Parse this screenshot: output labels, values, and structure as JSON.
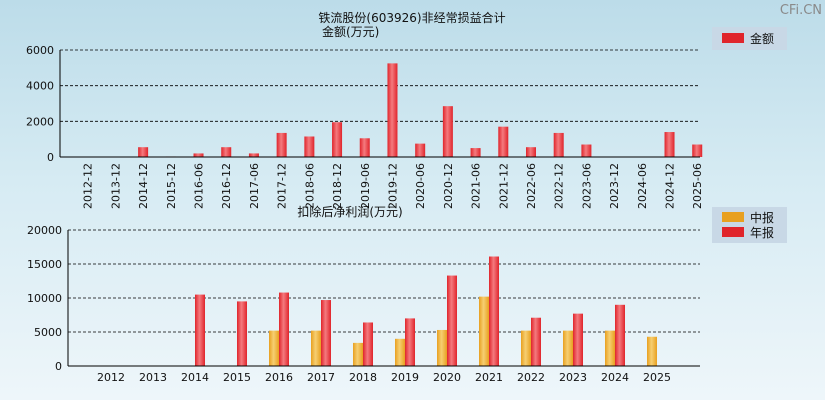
{
  "watermark": "CFi.CN",
  "colors": {
    "annual": "#e0242b",
    "interim": "#e8a020",
    "grid": "#000000"
  },
  "chart_data": [
    {
      "type": "bar",
      "title": "铁流股份(603926)非经常损益合计",
      "subtitle": "金额(万元)",
      "legend": [
        "金额"
      ],
      "legend_position": "top-right",
      "grid": true,
      "ylim": [
        0,
        6000
      ],
      "yticks": [
        "0",
        "2000",
        "4000",
        "6000"
      ],
      "categories": [
        "2012-12",
        "2013-12",
        "2014-12",
        "2015-12",
        "2016-06",
        "2016-12",
        "2017-06",
        "2017-12",
        "2018-06",
        "2018-12",
        "2019-06",
        "2019-12",
        "2020-06",
        "2020-12",
        "2021-06",
        "2021-12",
        "2022-06",
        "2022-12",
        "2023-06",
        "2023-12",
        "2024-06",
        "2024-12",
        "2025-06"
      ],
      "series": [
        {
          "name": "金额",
          "values": [
            0,
            0,
            550,
            30,
            200,
            550,
            200,
            1350,
            1150,
            1950,
            1050,
            5250,
            750,
            2850,
            500,
            1700,
            550,
            1350,
            700,
            0,
            0,
            1400,
            700
          ]
        }
      ]
    },
    {
      "type": "bar",
      "title": "扣除后净利润(万元)",
      "legend": [
        "中报",
        "年报"
      ],
      "legend_position": "top-right",
      "grid": true,
      "ylim": [
        0,
        20000
      ],
      "yticks": [
        "0",
        "5000",
        "10000",
        "15000",
        "20000"
      ],
      "categories": [
        "2012",
        "2013",
        "2014",
        "2015",
        "2016",
        "2017",
        "2018",
        "2019",
        "2020",
        "2021",
        "2022",
        "2023",
        "2024",
        "2025"
      ],
      "series": [
        {
          "name": "中报",
          "values": [
            null,
            null,
            null,
            null,
            5200,
            5200,
            3400,
            4000,
            5300,
            10200,
            5200,
            5200,
            5200,
            4300
          ]
        },
        {
          "name": "年报",
          "values": [
            null,
            null,
            10500,
            9500,
            10800,
            9700,
            6400,
            7000,
            13300,
            16100,
            7100,
            7700,
            9000,
            null
          ]
        }
      ]
    }
  ]
}
